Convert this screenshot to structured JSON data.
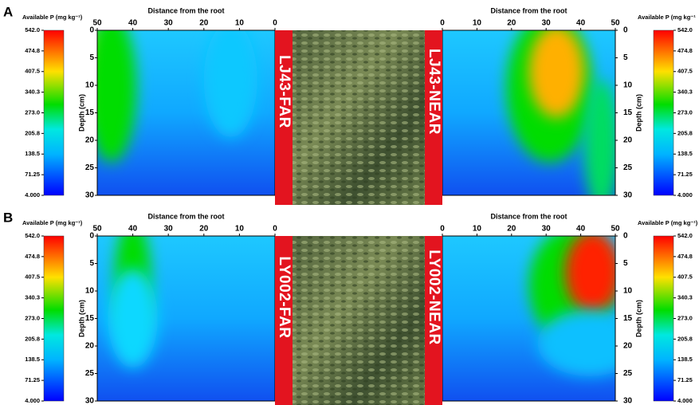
{
  "panels": [
    {
      "label": "A",
      "colorbars": [
        {
          "title": "Available P (mg kg⁻¹)",
          "lim": [
            4,
            542
          ],
          "ticks": [
            {
              "value": 542,
              "label": "542.0"
            },
            474.8,
            407.5,
            340.3,
            {
              "value": 273,
              "label": "273.0"
            },
            205.8,
            138.5,
            71.25,
            {
              "value": 4,
              "label": "4.000"
            }
          ]
        },
        {
          "title": "Available P (mg kg⁻¹",
          "lim": [
            4,
            542
          ],
          "ticks": [
            {
              "value": 542,
              "label": "542.0"
            },
            474.8,
            407.5,
            340.3,
            {
              "value": 273,
              "label": "273.0"
            },
            205.8,
            138.5,
            71.25,
            {
              "value": 4,
              "label": "4.000"
            }
          ]
        }
      ],
      "plots": [
        {
          "tag": "LJ43-FAR",
          "x_title": "Distance from the root",
          "xlim": [
            50,
            0
          ],
          "xticks": [
            50,
            40,
            30,
            20,
            10,
            0
          ],
          "y_title": "Depth (cm)",
          "ylim": [
            0,
            30
          ],
          "yticks": [
            0,
            5,
            10,
            15,
            20,
            25,
            30
          ]
        },
        {
          "tag": "LJ43-NEAR",
          "x_title": "Distance from the root",
          "xlim": [
            0,
            50
          ],
          "xticks": [
            0,
            10,
            20,
            30,
            40,
            50
          ],
          "y_title": "Depth (cm)",
          "ylim": [
            0,
            30
          ],
          "yticks": [
            0,
            5,
            10,
            15,
            20,
            25,
            30
          ]
        }
      ]
    },
    {
      "label": "B",
      "colorbars": [
        {
          "title": "Available P (mg kg⁻¹)",
          "lim": [
            4,
            542
          ],
          "ticks": [
            {
              "value": 542,
              "label": "542.0"
            },
            474.8,
            407.5,
            340.3,
            {
              "value": 273,
              "label": "273.0"
            },
            205.8,
            138.5,
            71.25,
            {
              "value": 4,
              "label": "4.000"
            }
          ]
        },
        {
          "title": "Available P (mg kg⁻¹)",
          "lim": [
            4,
            542
          ],
          "ticks": [
            {
              "value": 542,
              "label": "542.0"
            },
            474.8,
            407.5,
            340.3,
            {
              "value": 273,
              "label": "273.0"
            },
            205.8,
            138.5,
            71.25,
            {
              "value": 4,
              "label": "4.000"
            }
          ]
        }
      ],
      "plots": [
        {
          "tag": "LY002-FAR",
          "x_title": "Distance from the root",
          "xlim": [
            50,
            0
          ],
          "xticks": [
            50,
            40,
            30,
            20,
            10,
            0
          ],
          "y_title": "Depth (cm)",
          "ylim": [
            0,
            30
          ],
          "yticks": [
            0,
            5,
            10,
            15,
            20,
            25,
            30
          ]
        },
        {
          "tag": "LY002-NEAR",
          "x_title": "Distance from the root",
          "xlim": [
            0,
            50
          ],
          "xticks": [
            0,
            10,
            20,
            30,
            40,
            50
          ],
          "y_title": "Depth (cm)",
          "ylim": [
            0,
            30
          ],
          "yticks": [
            0,
            5,
            10,
            15,
            20,
            25,
            30
          ]
        }
      ]
    }
  ]
}
